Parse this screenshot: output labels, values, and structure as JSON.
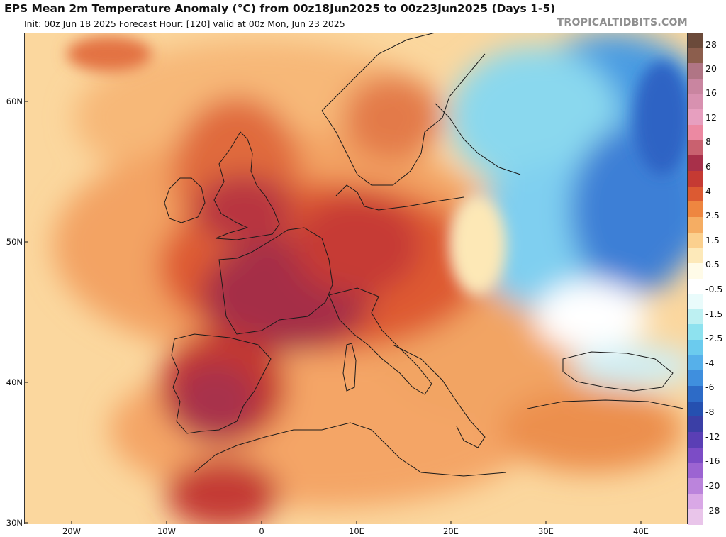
{
  "header": {
    "title": "EPS Mean 2m Temperature Anomaly (°C) from 00z18Jun2025 to 00z23Jun2025 (Days 1-5)",
    "subtitle": "Init: 00z Jun 18 2025   Forecast Hour: [120]   valid at 00z Mon, Jun 23 2025",
    "brand": "TROPICALTIDBITS.COM"
  },
  "map": {
    "lat_labels": [
      "60N",
      "50N",
      "40N",
      "30N"
    ],
    "lon_labels": [
      "20W",
      "10W",
      "0",
      "10E",
      "20E",
      "30E",
      "40E"
    ]
  },
  "colorbar": {
    "labels": [
      "28",
      "20",
      "16",
      "12",
      "8",
      "6",
      "4",
      "2.5",
      "1.5",
      "0.5",
      "-0.5",
      "-1.5",
      "-2.5",
      "-4",
      "-6",
      "-8",
      "-12",
      "-16",
      "-20",
      "-28"
    ],
    "colors": [
      "#6b4a3a",
      "#8c5e4d",
      "#b07585",
      "#c985a0",
      "#d891b0",
      "#e79fbf",
      "#ec89a2",
      "#c9616f",
      "#a8304a",
      "#c53a33",
      "#dc5a32",
      "#ee8640",
      "#f5ad63",
      "#fbd08e",
      "#fde9b9",
      "#fffbe8",
      "#ffffff",
      "#e9fbfb",
      "#bdf0f2",
      "#8ee2ef",
      "#6bcbee",
      "#56b0ea",
      "#3f8fde",
      "#2d6bc7",
      "#2550b0",
      "#3b3fa6",
      "#5a3fb5",
      "#7c4cc6",
      "#9c64d2",
      "#bb84dc",
      "#d9a8e6",
      "#e9c5ea"
    ]
  }
}
